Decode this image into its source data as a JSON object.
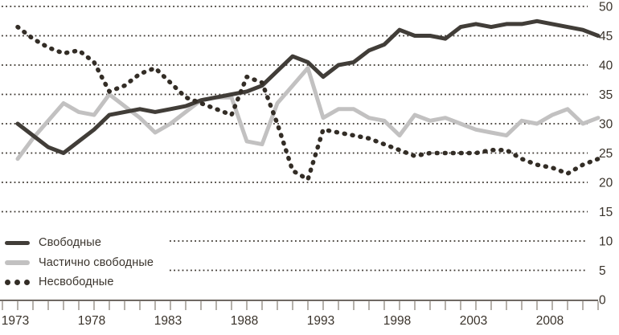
{
  "chart_data": {
    "type": "line",
    "title": "",
    "grid": "dotted-horizontal",
    "legend_position": "bottom-left",
    "x_years": [
      1973,
      1974,
      1975,
      1976,
      1977,
      1978,
      1979,
      1980,
      1981,
      1982,
      1983,
      1984,
      1985,
      1986,
      1987,
      1988,
      1989,
      1990,
      1991,
      1992,
      1993,
      1994,
      1995,
      1996,
      1997,
      1998,
      1999,
      2000,
      2001,
      2002,
      2003,
      2004,
      2005,
      2006,
      2007,
      2008,
      2009,
      2010,
      2011
    ],
    "x_tick_labels": [
      "1973",
      "1978",
      "1983",
      "1988",
      "1993",
      "1998",
      "2003",
      "2008"
    ],
    "x_tick_years": [
      1973,
      1978,
      1983,
      1988,
      1993,
      1998,
      2003,
      2008
    ],
    "ylim": [
      0,
      50
    ],
    "y_ticks": [
      0,
      5,
      10,
      15,
      20,
      25,
      30,
      35,
      40,
      45,
      50
    ],
    "y_tick_labels": [
      "0",
      "5",
      "10",
      "15",
      "20",
      "25",
      "30",
      "35",
      "40",
      "45",
      "50"
    ],
    "series": [
      {
        "name": "Свободные",
        "style": "solid",
        "color": "#413d38",
        "values": [
          30,
          28,
          26,
          25,
          27,
          29,
          31.5,
          32,
          32.5,
          32,
          32.5,
          33,
          34,
          34.5,
          35,
          35.5,
          36.5,
          39,
          41.5,
          40.5,
          38,
          40,
          40.5,
          42.5,
          43.5,
          46,
          45,
          45,
          44.5,
          46.5,
          47,
          46.5,
          47,
          47,
          47.5,
          47,
          46.5,
          46,
          45
        ]
      },
      {
        "name": "Частично свободные",
        "style": "solid",
        "color": "#c2c1c1",
        "values": [
          24,
          27.5,
          30.5,
          33.5,
          32,
          31.5,
          35,
          33,
          31,
          28.5,
          30,
          32,
          34,
          34.5,
          34.5,
          27,
          26.5,
          33.5,
          36.5,
          39.5,
          31,
          32.5,
          32.5,
          31,
          30.5,
          28,
          31.5,
          30.5,
          31,
          30,
          29,
          28.5,
          28,
          30.5,
          30,
          31.5,
          32.5,
          30,
          31
        ]
      },
      {
        "name": "Несвободные",
        "style": "dotted",
        "color": "#332d26",
        "values": [
          46.5,
          44.5,
          43,
          42,
          42.5,
          40.5,
          35.5,
          36.5,
          38.5,
          39.5,
          37,
          34.5,
          33.5,
          32.5,
          31.5,
          38,
          37,
          30,
          22,
          20.5,
          29,
          28.5,
          28,
          27.5,
          26.5,
          25.5,
          24.5,
          25,
          25,
          25,
          25,
          25.5,
          25.5,
          24,
          23,
          22.5,
          21.5,
          23,
          24
        ]
      }
    ]
  }
}
